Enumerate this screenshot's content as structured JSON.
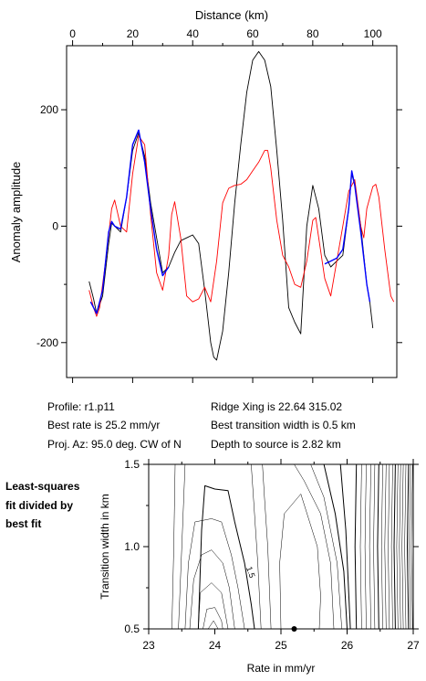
{
  "chart_data": [
    {
      "type": "line",
      "xlabel": "Distance (km)",
      "ylabel": "Anomaly amplitude",
      "xlim": [
        -2,
        108
      ],
      "ylim": [
        -260,
        310
      ],
      "xticks": [
        0,
        20,
        40,
        60,
        80,
        100
      ],
      "yticks": [
        -200,
        0,
        200
      ],
      "ytick_labels": [
        "-200",
        "0",
        "200"
      ],
      "x_axis_position": "top",
      "series": [
        {
          "color": "#000000",
          "points": [
            [
              5.5,
              -95
            ],
            [
              7,
              -125
            ],
            [
              8,
              -150
            ],
            [
              10,
              -120
            ],
            [
              12,
              -30
            ],
            [
              13,
              5
            ],
            [
              14,
              0
            ],
            [
              16,
              -10
            ],
            [
              18,
              50
            ],
            [
              20,
              130
            ],
            [
              22,
              160
            ],
            [
              24,
              120
            ],
            [
              26,
              40
            ],
            [
              28,
              -20
            ],
            [
              30,
              -80
            ],
            [
              32,
              -70
            ],
            [
              34,
              -45
            ],
            [
              36,
              -25
            ],
            [
              38,
              -20
            ],
            [
              40,
              -15
            ],
            [
              42,
              -30
            ],
            [
              44,
              -110
            ],
            [
              46,
              -200
            ],
            [
              47,
              -225
            ],
            [
              48,
              -230
            ],
            [
              50,
              -180
            ],
            [
              52,
              -80
            ],
            [
              54,
              40
            ],
            [
              56,
              140
            ],
            [
              58,
              230
            ],
            [
              60,
              285
            ],
            [
              62,
              300
            ],
            [
              64,
              285
            ],
            [
              66,
              240
            ],
            [
              68,
              130
            ],
            [
              70,
              10
            ],
            [
              72,
              -140
            ],
            [
              74,
              -165
            ],
            [
              76,
              -185
            ],
            [
              78,
              0
            ],
            [
              80,
              70
            ],
            [
              82,
              30
            ],
            [
              84,
              -50
            ],
            [
              86,
              -70
            ],
            [
              88,
              -60
            ],
            [
              90,
              -50
            ],
            [
              92,
              30
            ],
            [
              93,
              90
            ],
            [
              94,
              70
            ],
            [
              96,
              0
            ],
            [
              98,
              -100
            ],
            [
              99,
              -130
            ],
            [
              100,
              -175
            ]
          ]
        },
        {
          "color": "#ff0000",
          "points": [
            [
              5.5,
              -110
            ],
            [
              7,
              -140
            ],
            [
              8,
              -155
            ],
            [
              9,
              -140
            ],
            [
              11,
              -60
            ],
            [
              13,
              30
            ],
            [
              14,
              45
            ],
            [
              16,
              0
            ],
            [
              18,
              -10
            ],
            [
              20,
              90
            ],
            [
              22,
              155
            ],
            [
              24,
              140
            ],
            [
              26,
              20
            ],
            [
              28,
              -80
            ],
            [
              30,
              -110
            ],
            [
              32,
              -50
            ],
            [
              33,
              20
            ],
            [
              34,
              42
            ],
            [
              36,
              -20
            ],
            [
              38,
              -120
            ],
            [
              40,
              -130
            ],
            [
              42,
              -125
            ],
            [
              44,
              -105
            ],
            [
              46,
              -130
            ],
            [
              48,
              -60
            ],
            [
              50,
              40
            ],
            [
              52,
              65
            ],
            [
              54,
              70
            ],
            [
              56,
              72
            ],
            [
              58,
              80
            ],
            [
              60,
              95
            ],
            [
              62,
              110
            ],
            [
              64,
              130
            ],
            [
              65,
              130
            ],
            [
              66,
              100
            ],
            [
              68,
              10
            ],
            [
              70,
              -50
            ],
            [
              72,
              -70
            ],
            [
              74,
              -100
            ],
            [
              76,
              -105
            ],
            [
              78,
              -60
            ],
            [
              80,
              10
            ],
            [
              81,
              15
            ],
            [
              82,
              -20
            ],
            [
              84,
              -90
            ],
            [
              86,
              -120
            ],
            [
              88,
              -60
            ],
            [
              90,
              0
            ],
            [
              92,
              60
            ],
            [
              94,
              80
            ],
            [
              96,
              0
            ],
            [
              97,
              -20
            ],
            [
              98,
              30
            ],
            [
              100,
              68
            ],
            [
              101,
              72
            ],
            [
              102,
              50
            ],
            [
              104,
              -40
            ],
            [
              106,
              -120
            ],
            [
              107,
              -130
            ]
          ]
        },
        {
          "color": "#0000ff",
          "points": [
            [
              6,
              -130
            ],
            [
              8,
              -150
            ],
            [
              10,
              -110
            ],
            [
              12,
              -10
            ],
            [
              13,
              8
            ],
            [
              14,
              0
            ],
            [
              16,
              -5
            ],
            [
              18,
              50
            ],
            [
              20,
              140
            ],
            [
              22,
              165
            ],
            [
              24,
              110
            ],
            [
              26,
              30
            ],
            [
              28,
              -40
            ],
            [
              30,
              -85
            ],
            [
              32,
              -70
            ]
          ],
          "points2": [
            [
              84,
              -65
            ],
            [
              86,
              -60
            ],
            [
              88,
              -55
            ],
            [
              90,
              -40
            ],
            [
              92,
              30
            ],
            [
              93,
              95
            ],
            [
              94,
              70
            ],
            [
              96,
              -10
            ],
            [
              98,
              -100
            ],
            [
              99,
              -130
            ]
          ]
        }
      ]
    },
    {
      "type": "contour",
      "xlabel": "Rate in mm/yr",
      "ylabel": "Transition width in km",
      "xlim": [
        23,
        27
      ],
      "ylim": [
        0.5,
        1.5
      ],
      "xticks": [
        23,
        24,
        25,
        26,
        27
      ],
      "yticks": [
        0.5,
        1.0,
        1.5
      ],
      "ytick_labels": [
        "0.5",
        "1.0",
        "1.5"
      ],
      "contour_label": "1.5",
      "best_fit_point": [
        25.2,
        0.5
      ]
    }
  ],
  "info": {
    "profile": "Profile: r1.p11",
    "best_rate": "Best rate is 25.2 mm/yr",
    "proj_az": "Proj. Az: 95.0 deg. CW of N",
    "ridge_xing": "Ridge Xing is 22.64 315.02",
    "best_width": "Best transition width is 0.5 km",
    "depth": "Depth to source is   2.82 km"
  },
  "side_note": {
    "line1": "Least-squares",
    "line2": "fit divided by",
    "line3": "best fit"
  }
}
